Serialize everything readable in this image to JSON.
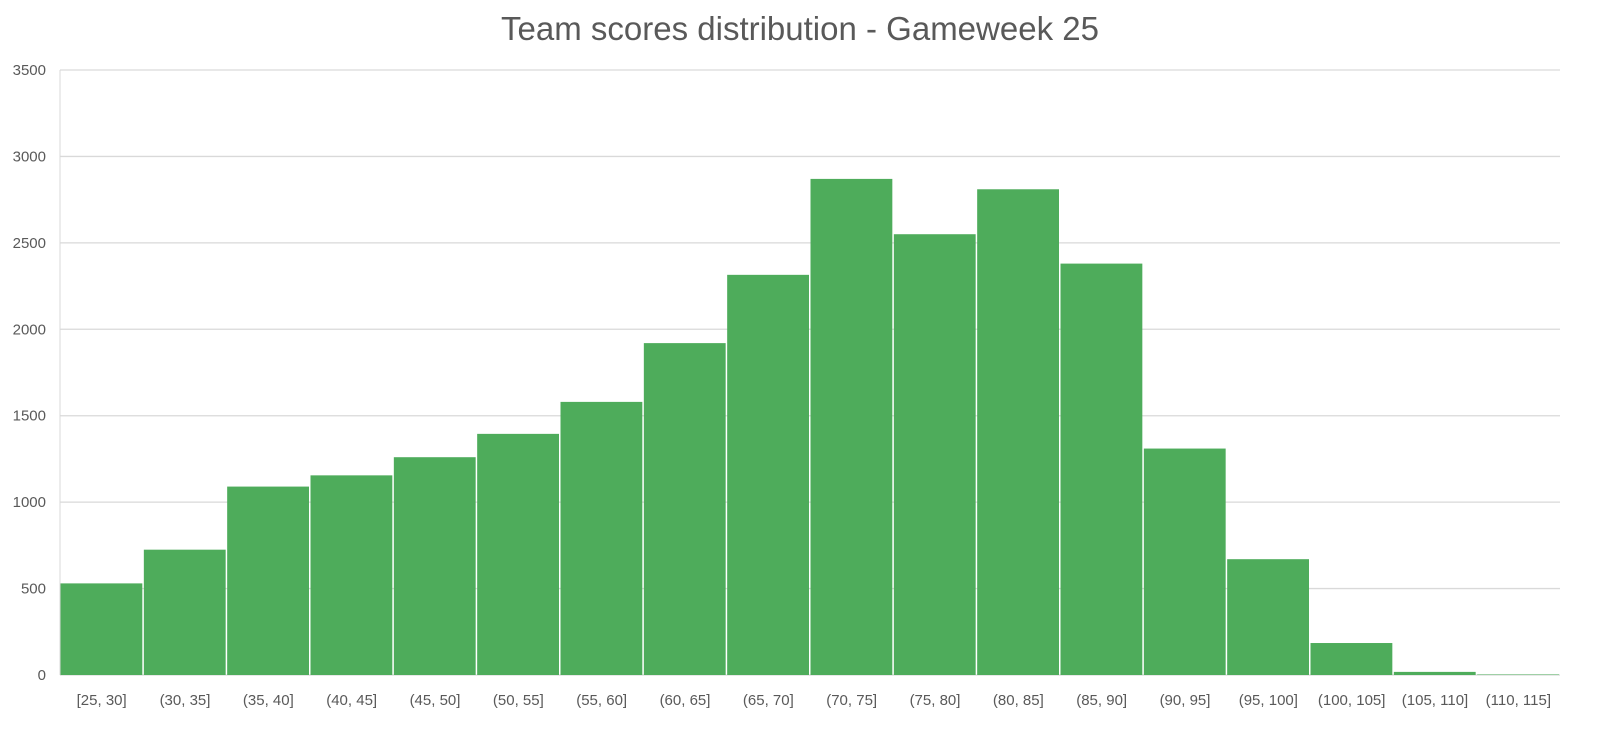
{
  "chart_data": {
    "type": "bar",
    "title": "Team scores distribution - Gameweek 25",
    "xlabel": "",
    "ylabel": "",
    "categories": [
      "[25, 30]",
      "(30, 35]",
      "(35, 40]",
      "(40, 45]",
      "(45, 50]",
      "(50, 55]",
      "(55, 60]",
      "(60, 65]",
      "(65, 70]",
      "(70, 75]",
      "(75, 80]",
      "(80, 85]",
      "(85, 90]",
      "(90, 95]",
      "(95, 100]",
      "(100, 105]",
      "(105, 110]",
      "(110, 115]"
    ],
    "values": [
      530,
      725,
      1090,
      1155,
      1260,
      1395,
      1580,
      1920,
      2315,
      2870,
      2550,
      2810,
      2380,
      1310,
      670,
      185,
      18,
      3
    ],
    "ylim": [
      0,
      3500
    ],
    "yticks": [
      "0",
      "500",
      "1000",
      "1500",
      "2000",
      "2500",
      "3000",
      "3500"
    ],
    "grid": true,
    "legend": "none",
    "colors": {
      "bar": "#4EAC5B",
      "grid": "#D9D9D9",
      "text": "#595959"
    }
  }
}
